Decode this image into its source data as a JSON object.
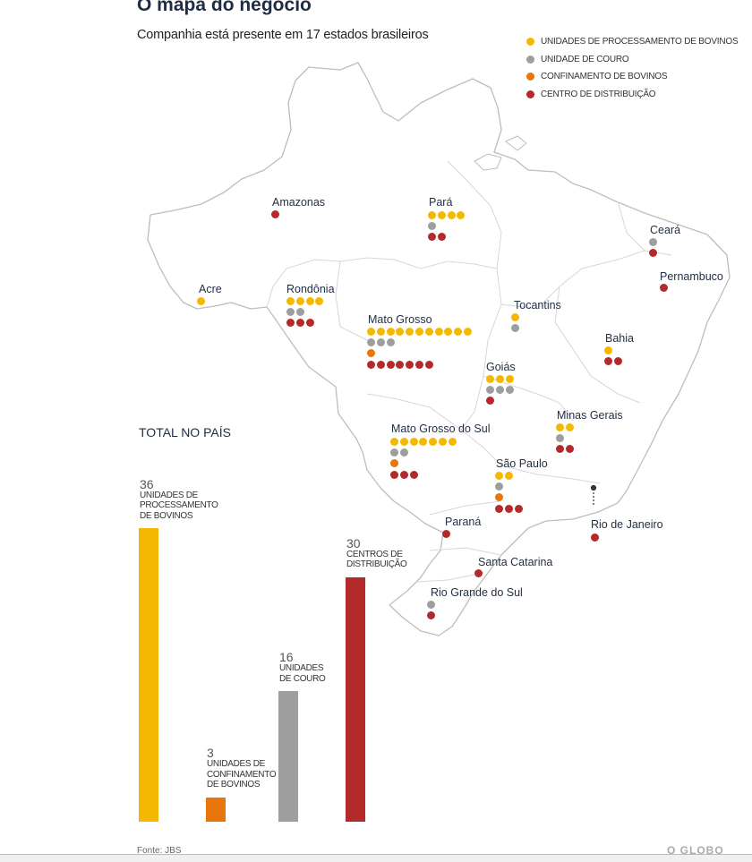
{
  "title": "O mapa do negócio",
  "subtitle": "Companhia está presente em 17 estados brasileiros",
  "colors": {
    "processamento": "#f5b800",
    "couro": "#9e9e9e",
    "confinamento": "#e8760a",
    "distribuicao": "#b42a2a",
    "map_fill": "#ffffff",
    "map_stroke": "#bdbdbd"
  },
  "legend": [
    {
      "label": "UNIDADES DE PROCESSAMENTO DE BOVINOS",
      "type": "processamento"
    },
    {
      "label": "UNIDADE DE COURO",
      "type": "couro"
    },
    {
      "label": "CONFINAMENTO DE BOVINOS",
      "type": "confinamento"
    },
    {
      "label": "CENTRO DE DISTRIBUIÇÃO",
      "type": "distribuicao"
    }
  ],
  "states": [
    {
      "name": "Amazonas",
      "processamento": 0,
      "couro": 0,
      "confinamento": 0,
      "distribuicao": 1
    },
    {
      "name": "Pará",
      "processamento": 4,
      "couro": 1,
      "confinamento": 0,
      "distribuicao": 2
    },
    {
      "name": "Ceará",
      "processamento": 0,
      "couro": 1,
      "confinamento": 0,
      "distribuicao": 1
    },
    {
      "name": "Pernambuco",
      "processamento": 0,
      "couro": 0,
      "confinamento": 0,
      "distribuicao": 1
    },
    {
      "name": "Acre",
      "processamento": 1,
      "couro": 0,
      "confinamento": 0,
      "distribuicao": 0
    },
    {
      "name": "Rondônia",
      "processamento": 4,
      "couro": 2,
      "confinamento": 0,
      "distribuicao": 3
    },
    {
      "name": "Tocantins",
      "processamento": 1,
      "couro": 1,
      "confinamento": 0,
      "distribuicao": 0
    },
    {
      "name": "Mato Grosso",
      "processamento": 11,
      "couro": 3,
      "confinamento": 1,
      "distribuicao": 7
    },
    {
      "name": "Bahia",
      "processamento": 1,
      "couro": 0,
      "confinamento": 0,
      "distribuicao": 2
    },
    {
      "name": "Goiás",
      "processamento": 3,
      "couro": 3,
      "confinamento": 0,
      "distribuicao": 1
    },
    {
      "name": "Minas Gerais",
      "processamento": 2,
      "couro": 1,
      "confinamento": 0,
      "distribuicao": 2
    },
    {
      "name": "Mato Grosso do Sul",
      "processamento": 7,
      "couro": 2,
      "confinamento": 1,
      "distribuicao": 3
    },
    {
      "name": "São Paulo",
      "processamento": 2,
      "couro": 1,
      "confinamento": 1,
      "distribuicao": 3
    },
    {
      "name": "Paraná",
      "processamento": 0,
      "couro": 0,
      "confinamento": 0,
      "distribuicao": 1
    },
    {
      "name": "Rio de Janeiro",
      "processamento": 0,
      "couro": 0,
      "confinamento": 0,
      "distribuicao": 1
    },
    {
      "name": "Santa Catarina",
      "processamento": 0,
      "couro": 0,
      "confinamento": 0,
      "distribuicao": 1
    },
    {
      "name": "Rio Grande do Sul",
      "processamento": 0,
      "couro": 1,
      "confinamento": 0,
      "distribuicao": 1
    }
  ],
  "totals_title": "TOTAL NO PAÍS",
  "chart_data": {
    "type": "bar",
    "categories": [
      "UNIDADES DE PROCESSAMENTO DE BOVINOS",
      "UNIDADES DE CONFINAMENTO DE BOVINOS",
      "UNIDADES DE COURO",
      "CENTROS DE DISTRIBUIÇÃO"
    ],
    "values": [
      36,
      3,
      16,
      30
    ],
    "value_labels": [
      "36",
      "3",
      "16",
      "30"
    ],
    "labels": [
      "UNIDADES DE\nPROCESSAMENTO\nDE BOVINOS",
      "UNIDADES DE\nCONFINAMENTO\nDE BOVINOS",
      "UNIDADES\nDE COURO",
      "CENTROS DE\nDISTRIBUIÇÃO"
    ],
    "colors": [
      "#f5b800",
      "#e8760a",
      "#9e9e9e",
      "#b42a2a"
    ],
    "ylim": [
      0,
      36
    ],
    "grid": false,
    "legend": "none"
  },
  "source": "Fonte: JBS",
  "brand": "O GLOBO"
}
